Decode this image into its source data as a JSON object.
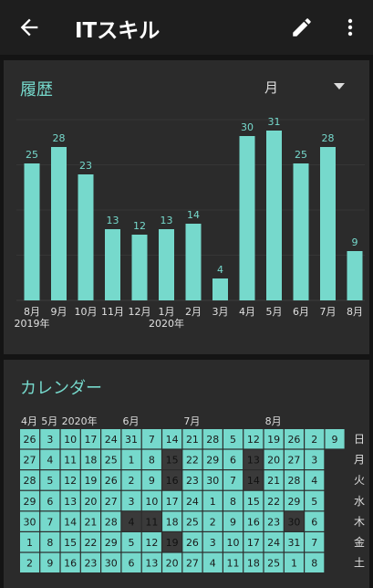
{
  "app_bar": {
    "title": "ITスキル"
  },
  "history": {
    "title": "履歴",
    "period_select": "月"
  },
  "chart_data": {
    "type": "bar",
    "categories": [
      "8月",
      "9月",
      "10月",
      "11月",
      "12月",
      "1月",
      "2月",
      "3月",
      "4月",
      "5月",
      "6月",
      "7月",
      "8月"
    ],
    "values": [
      25,
      28,
      23,
      13,
      12,
      13,
      14,
      4,
      30,
      31,
      25,
      28,
      9
    ],
    "year_labels": [
      {
        "label": "2019年",
        "at": "8月"
      },
      {
        "label": "2020年",
        "at": "1月"
      }
    ],
    "ylim": [
      0,
      33
    ],
    "grid": true,
    "bar_color": "#76d9cc",
    "value_color": "#76d9cc"
  },
  "calendar": {
    "title": "カレンダー",
    "top_labels": [
      {
        "text": "4月",
        "col": 0
      },
      {
        "text": "5月",
        "col": 1
      },
      {
        "text": "2020年",
        "col": 2
      },
      {
        "text": "6月",
        "col": 5
      },
      {
        "text": "7月",
        "col": 8
      },
      {
        "text": "8月",
        "col": 12
      }
    ],
    "weekdays": [
      "日",
      "月",
      "火",
      "水",
      "木",
      "金",
      "土"
    ],
    "active_color": "#76d9cc",
    "inactive_color": "#3a3a3a",
    "columns": [
      [
        "26",
        "27",
        "28",
        "29",
        "30",
        "1",
        "2"
      ],
      [
        "3",
        "4",
        "5",
        "6",
        "7",
        "8",
        "9"
      ],
      [
        "10",
        "11",
        "12",
        "13",
        "14",
        "15",
        "16"
      ],
      [
        "17",
        "18",
        "19",
        "20",
        "21",
        "22",
        "23"
      ],
      [
        "24",
        "25",
        "26",
        "27",
        "28",
        "29",
        "30"
      ],
      [
        "31",
        "1",
        "2",
        "3",
        "4",
        "5",
        "6"
      ],
      [
        "7",
        "8",
        "9",
        "10",
        "11",
        "12",
        "13"
      ],
      [
        "14",
        "15",
        "16",
        "17",
        "18",
        "19",
        "20"
      ],
      [
        "21",
        "22",
        "23",
        "24",
        "25",
        "26",
        "27"
      ],
      [
        "28",
        "29",
        "30",
        "1",
        "2",
        "3",
        "4"
      ],
      [
        "5",
        "6",
        "7",
        "8",
        "9",
        "10",
        "11"
      ],
      [
        "12",
        "13",
        "14",
        "15",
        "16",
        "17",
        "18"
      ],
      [
        "19",
        "20",
        "21",
        "22",
        "23",
        "24",
        "25"
      ],
      [
        "26",
        "27",
        "28",
        "29",
        "30",
        "31",
        "1"
      ],
      [
        "2",
        "3",
        "4",
        "5",
        "6",
        "7",
        "8"
      ],
      [
        "9",
        "",
        "",
        "",
        "",
        "",
        ""
      ]
    ],
    "inactive": [
      [
        5,
        4
      ],
      [
        6,
        4
      ],
      [
        7,
        1
      ],
      [
        7,
        2
      ],
      [
        7,
        5
      ],
      [
        11,
        1
      ],
      [
        11,
        2
      ],
      [
        13,
        4
      ]
    ]
  }
}
